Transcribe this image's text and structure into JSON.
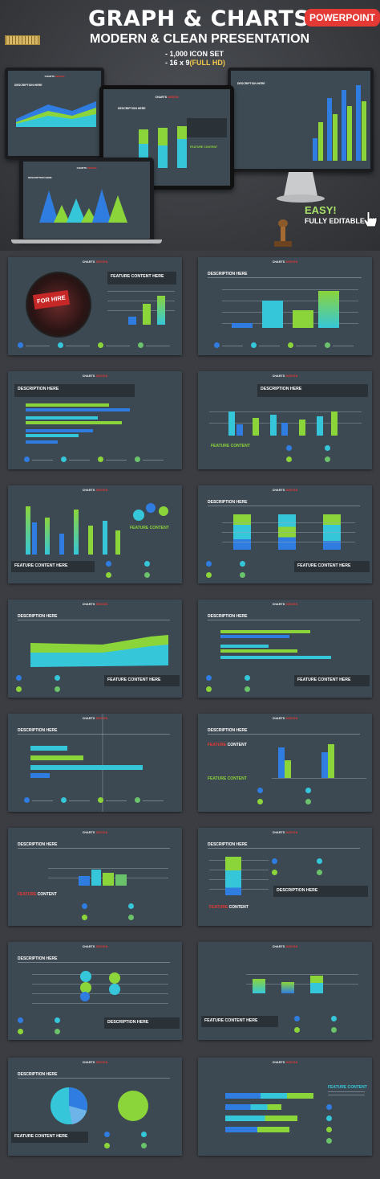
{
  "header": {
    "title": "GRAPH & CHARTS",
    "badge": "POWERPOINT",
    "subtitle": "MODERN & CLEAN PRESENTATION",
    "features": [
      "- 1,000 ICON SET",
      "- 16 x 9"
    ],
    "feature_highlight": "(FULL HD)",
    "easy": "EASY!",
    "editable": "FULLY EDITABLE"
  },
  "mockup": {
    "slide_title": "CHARTS",
    "slide_title_accent": "DESIGN",
    "description_label": "DESCRIPTION HERE",
    "feature_content": "FEATURE CONTENT"
  },
  "slides": {
    "header_text": "CHARTS",
    "header_accent": "DESIGN",
    "description": "DESCRIPTION HERE",
    "feature_content_here": "FEATURE CONTENT HERE",
    "feature_content": "FEATURE CONTENT",
    "feature_word": "FEATURE",
    "content_word": "CONTENT",
    "for_hire": "FOR HIRE"
  },
  "colors": {
    "accent_red": "#e53935",
    "blue": "#2f7de1",
    "cyan": "#35c7d9",
    "green": "#8bd43a",
    "slide_bg": "#3d4952"
  }
}
